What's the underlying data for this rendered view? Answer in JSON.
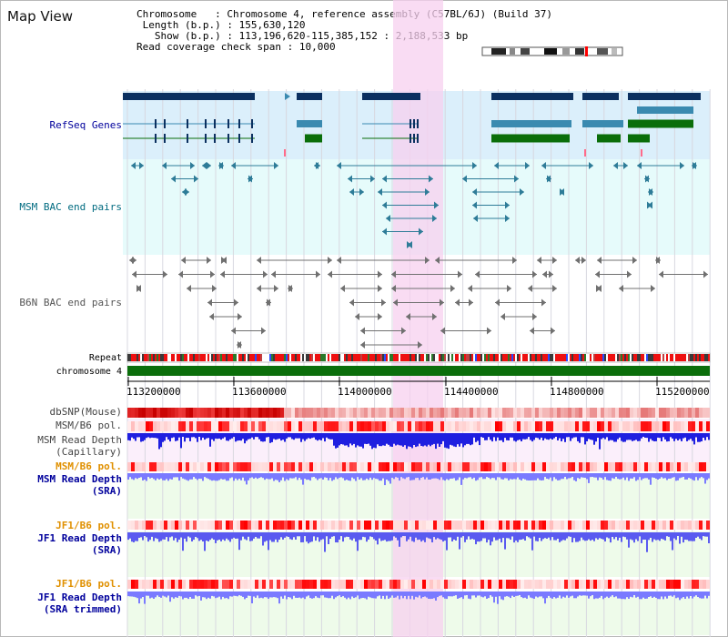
{
  "title": "Map View",
  "info": {
    "chromosome_label": "Chromosome",
    "chromosome_value": "Chromosome 4, reference assembly (C57BL/6J) (Build 37)",
    "length_label": "Length (b.p.)",
    "length_value": "155,630,120",
    "show_label": "Show (b.p.)",
    "show_value": "113,196,620-115,385,152 : 2,188,533 bp",
    "span_label": "Read coverage check span",
    "span_value": "10,000"
  },
  "tracks": {
    "refseq": "RefSeq Genes",
    "msm_bac": "MSM BAC end pairs",
    "b6n_bac": "B6N BAC end pairs",
    "repeat": "Repeat",
    "chromosome": "chromosome 4",
    "dbsnp": "dbSNP(Mouse)",
    "msm_b6_pol": "MSM/B6 pol.",
    "msm_depth_cap_1": "MSM Read Depth",
    "msm_depth_cap_2": "(Capillary)",
    "msm_b6_pol_2": "MSM/B6 pol.",
    "msm_depth_sra_1": "MSM Read Depth",
    "msm_depth_sra_2": "(SRA)",
    "jf1_b6_pol": "JF1/B6 pol.",
    "jf1_depth_sra_1": "JF1 Read Depth",
    "jf1_depth_sra_2": "(SRA)",
    "jf1_b6_pol_2": "JF1/B6 pol.",
    "jf1_depth_trim_1": "JF1 Read Depth",
    "jf1_depth_trim_2": "(SRA trimmed)"
  },
  "ruler": {
    "ticks": [
      "113200000",
      "113600000",
      "114000000",
      "114400000",
      "114800000",
      "115200000"
    ]
  },
  "colors": {
    "refseq_bg": "#dbeffb",
    "msm_bg": "#e6fbfb",
    "highlight": "#f7d0ef",
    "gene_dark": "#0b3060",
    "gene_mid": "#3a8ab0",
    "gene_green": "#0a6e0a",
    "msm_feature": "#2e7c98",
    "b6n_feature": "#707070",
    "chromosome_bar": "#0b6e0b",
    "depth_blue": "#4040ff",
    "sra_bg": "#eefbea",
    "label_orange": "#e09000",
    "label_blue": "#00009c"
  }
}
